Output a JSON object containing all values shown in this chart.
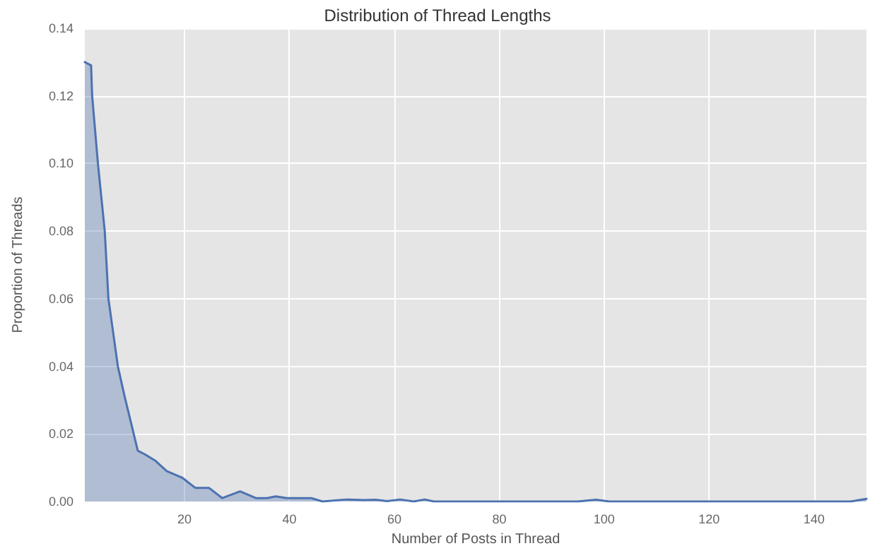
{
  "chart_data": {
    "type": "area",
    "title": "Distribution of Thread Lengths",
    "xlabel": "Number of Posts in Thread",
    "ylabel": "Proportion of Threads",
    "x": [
      1,
      2.2,
      2.4,
      3.5,
      4.8,
      5.5,
      7.3,
      8.6,
      11.1,
      12.4,
      14.5,
      16.6,
      19.6,
      22.1,
      24.7,
      27.2,
      30.6,
      33.6,
      35.7,
      37.4,
      39.5,
      44.2,
      46.3,
      50.9,
      54.3,
      56.4,
      58.6,
      61.1,
      63.7,
      65.8,
      67.5,
      80,
      95,
      98.4,
      101,
      120,
      147,
      150
    ],
    "series": [
      {
        "color": "#4c72b0",
        "values": [
          0.13,
          0.129,
          0.12,
          0.1,
          0.08,
          0.06,
          0.04,
          0.031,
          0.015,
          0.014,
          0.012,
          0.009,
          0.007,
          0.004,
          0.004,
          0.001,
          0.003,
          0.001,
          0.001,
          0.0015,
          0.001,
          0.001,
          0,
          0.0006,
          0.0004,
          0.0005,
          0.0001,
          0.0006,
          0,
          0.0006,
          0,
          0,
          0,
          0.0005,
          0,
          0,
          0,
          0.0008
        ]
      }
    ],
    "xlim": [
      1,
      150
    ],
    "xticks": [
      20,
      40,
      60,
      80,
      100,
      120,
      140
    ],
    "ylim": [
      0,
      0.14
    ],
    "yticks": [
      {
        "value": 0,
        "label": "0.00"
      },
      0.02,
      0.04,
      0.06,
      0.08,
      {
        "value": 0.1,
        "label": "0.10"
      },
      0.12,
      0.14
    ],
    "grid": true,
    "marker": "none",
    "line_style": "solid"
  }
}
